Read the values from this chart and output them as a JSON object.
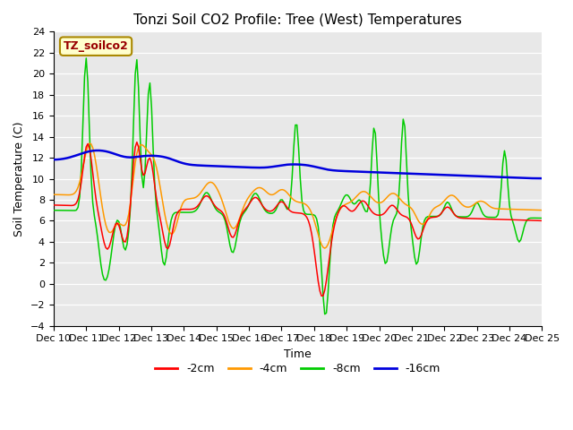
{
  "title": "Tonzi Soil CO2 Profile: Tree (West) Temperatures",
  "xlabel": "Time",
  "ylabel": "Soil Temperature (C)",
  "ylim": [
    -4,
    24
  ],
  "yticks": [
    -4,
    -2,
    0,
    2,
    4,
    6,
    8,
    10,
    12,
    14,
    16,
    18,
    20,
    22,
    24
  ],
  "xtick_labels": [
    "Dec 10",
    "Dec 11",
    "Dec 12",
    "Dec 13",
    "Dec 14",
    "Dec 15",
    "Dec 16",
    "Dec 17",
    "Dec 18",
    "Dec 19",
    "Dec 20",
    "Dec 21",
    "Dec 22",
    "Dec 23",
    "Dec 24",
    "Dec 25"
  ],
  "colors": {
    "2cm": "#ff0000",
    "4cm": "#ff9900",
    "8cm": "#00cc00",
    "16cm": "#0000dd"
  },
  "legend_labels": [
    "-2cm",
    "-4cm",
    "-8cm",
    "-16cm"
  ],
  "bg_color": "#e8e8e8",
  "label_box_color": "#ffffcc",
  "label_box_edge": "#aa8800",
  "label_text": "TZ_soilco2",
  "label_text_color": "#990000"
}
